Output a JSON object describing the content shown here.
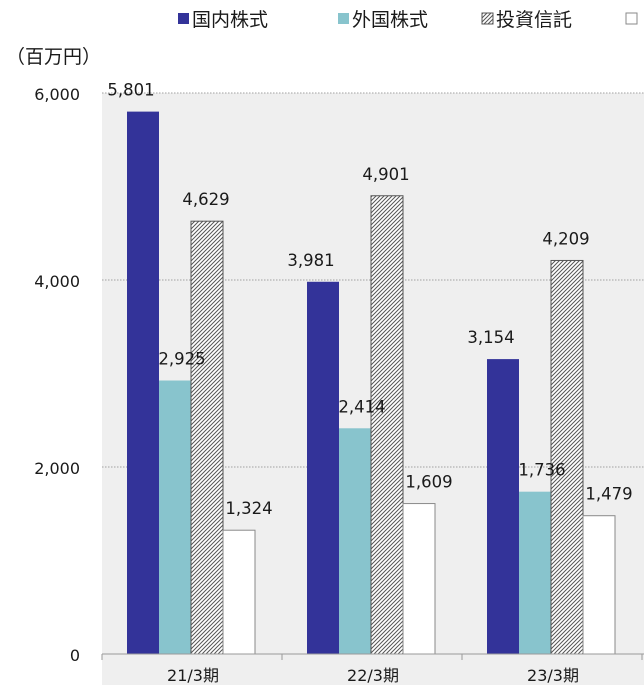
{
  "chart_data": {
    "type": "bar",
    "ylabel": "（百万円）",
    "ylim": [
      0,
      6000
    ],
    "yticks": [
      0,
      2000,
      4000,
      6000
    ],
    "ytick_labels": [
      "0",
      "2,000",
      "4,000",
      "6,000"
    ],
    "categories": [
      "21/3期",
      "22/3期",
      "23/3期"
    ],
    "grid": true,
    "legend_position": "top",
    "series": [
      {
        "name": "国内株式",
        "color": "#333399",
        "pattern": "solid",
        "values": [
          5801,
          3981,
          3154
        ],
        "labels": [
          "5,801",
          "3,981",
          "3,154"
        ]
      },
      {
        "name": "外国株式",
        "color": "#88c4cd",
        "pattern": "solid",
        "values": [
          2925,
          2414,
          1736
        ],
        "labels": [
          "2,925",
          "2,414",
          "1,736"
        ]
      },
      {
        "name": "投資信託",
        "color": "#666666",
        "pattern": "hatched",
        "values": [
          4629,
          4901,
          4209
        ],
        "labels": [
          "4,629",
          "4,901",
          "4,209"
        ]
      },
      {
        "name": "",
        "color": "#ffffff",
        "pattern": "outline",
        "values": [
          1324,
          1609,
          1479
        ],
        "labels": [
          "1,324",
          "1,609",
          "1,479"
        ]
      }
    ]
  }
}
